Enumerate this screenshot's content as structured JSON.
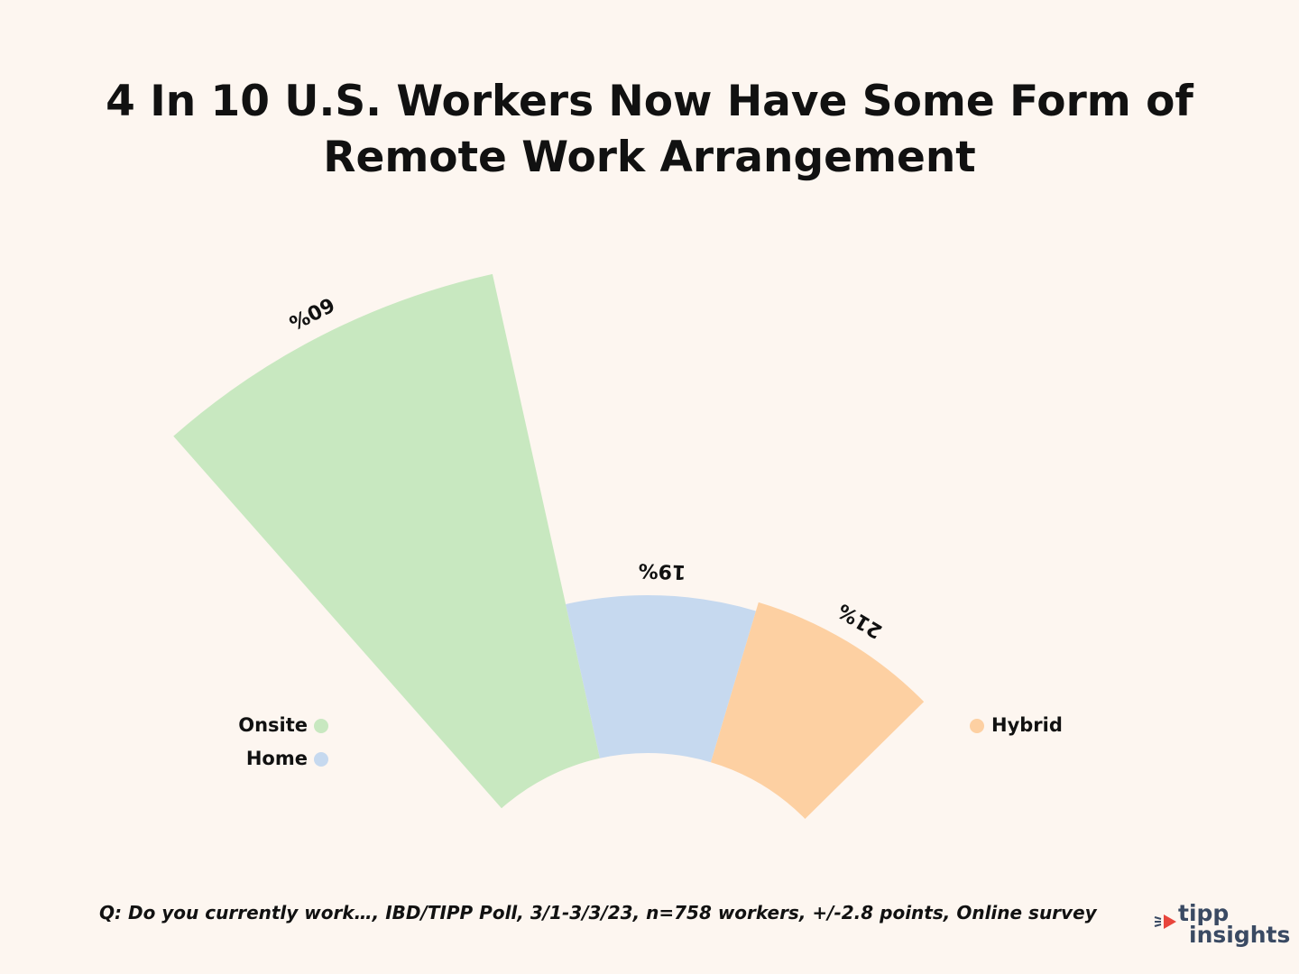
{
  "title_lines": [
    "4 In 10 U.S. Workers Now Have Some Form of",
    "Remote Work Arrangement"
  ],
  "chart_data": {
    "type": "pie",
    "variant": "polar-area-semicircle",
    "categories": [
      "Onsite",
      "Home",
      "Hybrid"
    ],
    "values": [
      60,
      19,
      21
    ],
    "labels": [
      "60%",
      "19%",
      "21%"
    ],
    "colors": [
      "#c8e8c0",
      "#c6d9ef",
      "#fdd0a2"
    ],
    "legend": {
      "left": [
        "Onsite",
        "Home"
      ],
      "right": [
        "Hybrid"
      ]
    }
  },
  "footnote": "Q: Do you currently work…, IBD/TIPP Poll, 3/1-3/3/23, n=758 workers, +/-2.8 points, Online survey",
  "logo": {
    "line1": "tipp",
    "line2": "insights",
    "accent_color": "#e8453c"
  }
}
